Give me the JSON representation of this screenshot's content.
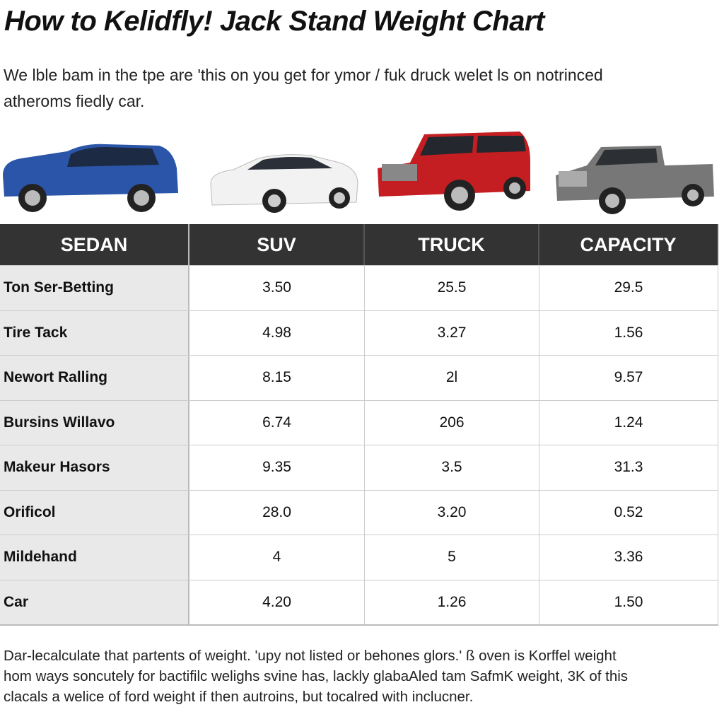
{
  "header": {
    "title": "How to Kelidfly! Jack Stand Weight Chart",
    "intro": [
      "We lble bam in the tpe are 'this on you get for ymor / fuk druck welet ls on notrinced",
      "atheroms fiedly car."
    ]
  },
  "table": {
    "columns": [
      "SEDAN",
      "SUV",
      "TRUCK",
      "CAPACITY"
    ],
    "rows": [
      [
        "Ton Ser-Betting",
        "3.50",
        "25.5",
        "29.5"
      ],
      [
        "Tire Tack",
        "4.98",
        "3.27",
        "1.56"
      ],
      [
        "Newort Ralling",
        "8.15",
        "2l",
        "9.57"
      ],
      [
        "Bursins Willavo",
        "6.74",
        "206",
        "1.24"
      ],
      [
        "Makeur Hasors",
        "9.35",
        "3.5",
        "31.3"
      ],
      [
        "Orificol",
        "28.0",
        "3.20",
        "0.52"
      ],
      [
        "Mildehand",
        "4",
        "5",
        "3.36"
      ],
      [
        "Car",
        "4.20",
        "1.26",
        "1.50"
      ]
    ]
  },
  "footer": [
    "Dar-lecalculate that partents of weight. 'upy not listed or behones glors.' ß oven is Korffel weight",
    "hom ways soncutely for bactifilc welighs svine has, lackly glabaAled tam SafmK weight, 3K of this",
    "clacals a welice of ford weight if then autroins, but tocalred with inclucner."
  ]
}
